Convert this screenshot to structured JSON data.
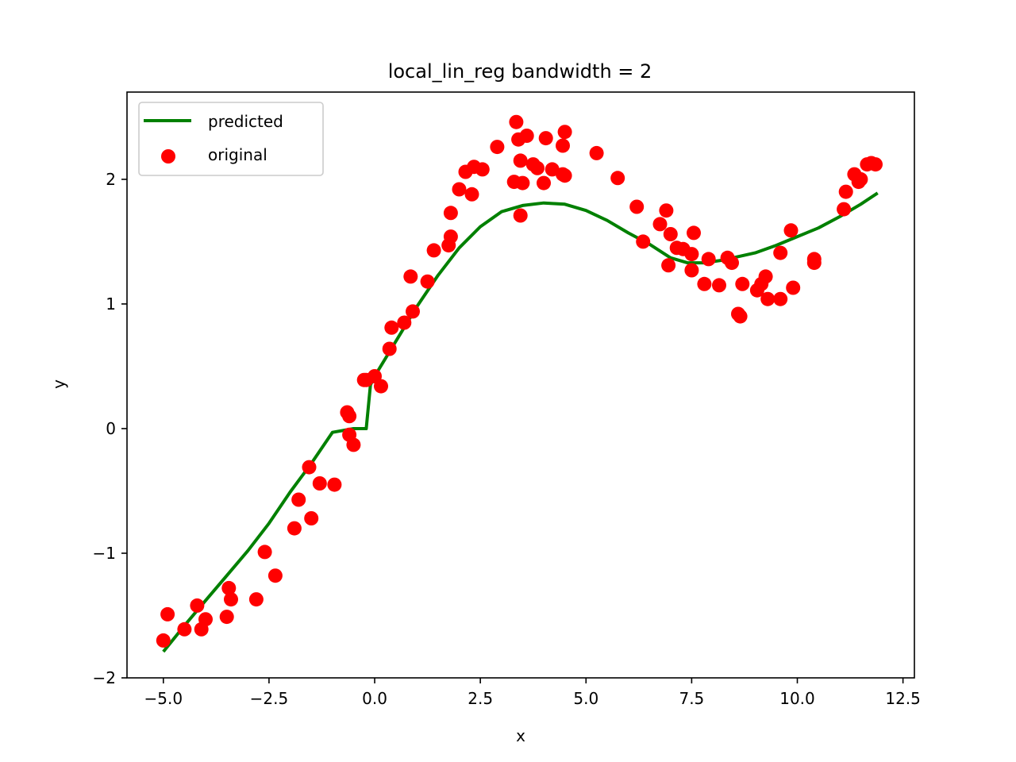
{
  "chart_data": {
    "type": "scatter",
    "title": "local_lin_reg bandwidth = 2",
    "xlabel": "x",
    "ylabel": "y",
    "xlim": [
      -5.86,
      12.77
    ],
    "ylim": [
      -2.0,
      2.7
    ],
    "xticks": [
      -5.0,
      -2.5,
      0.0,
      2.5,
      5.0,
      7.5,
      10.0,
      12.5
    ],
    "xtick_labels": [
      "−5.0",
      "−2.5",
      "0.0",
      "2.5",
      "5.0",
      "7.5",
      "10.0",
      "12.5"
    ],
    "yticks": [
      -2,
      -1,
      0,
      1,
      2
    ],
    "ytick_labels": [
      "−2",
      "−1",
      "0",
      "1",
      "2"
    ],
    "grid": false,
    "legend_position": "top-left",
    "colors": {
      "predicted": "#008000",
      "original": "#ff0000"
    },
    "series": [
      {
        "name": "predicted",
        "type": "line",
        "x": [
          -5.0,
          -4.5,
          -4.0,
          -3.5,
          -3.0,
          -2.5,
          -2.0,
          -1.5,
          -1.0,
          -0.5,
          -0.2,
          -0.1,
          0.0,
          0.5,
          1.0,
          1.5,
          2.0,
          2.5,
          3.0,
          3.5,
          4.0,
          4.5,
          5.0,
          5.5,
          6.0,
          6.5,
          7.0,
          7.4,
          7.8,
          8.2,
          8.6,
          9.0,
          9.5,
          10.0,
          10.5,
          11.0,
          11.5,
          11.9
        ],
        "y": [
          -1.79,
          -1.58,
          -1.38,
          -1.18,
          -0.98,
          -0.76,
          -0.51,
          -0.28,
          -0.03,
          0.0,
          0.0,
          0.35,
          0.42,
          0.7,
          0.98,
          1.23,
          1.45,
          1.62,
          1.74,
          1.79,
          1.81,
          1.8,
          1.75,
          1.67,
          1.57,
          1.48,
          1.37,
          1.33,
          1.33,
          1.35,
          1.38,
          1.41,
          1.47,
          1.54,
          1.61,
          1.7,
          1.8,
          1.89
        ]
      },
      {
        "name": "original",
        "type": "scatter",
        "x": [
          -5.0,
          -4.9,
          -4.5,
          -4.2,
          -4.1,
          -4.0,
          -3.5,
          -3.45,
          -3.4,
          -2.8,
          -2.6,
          -2.35,
          -1.9,
          -1.8,
          -1.55,
          -1.5,
          -1.3,
          -0.95,
          -0.65,
          -0.6,
          -0.6,
          -0.5,
          -0.25,
          -0.2,
          0.0,
          0.15,
          0.35,
          0.4,
          0.7,
          0.85,
          0.9,
          1.25,
          1.4,
          1.75,
          1.8,
          1.8,
          2.0,
          2.15,
          2.3,
          2.35,
          2.55,
          2.9,
          3.3,
          3.35,
          3.4,
          3.45,
          3.45,
          3.5,
          3.6,
          3.75,
          3.85,
          4.0,
          4.05,
          4.2,
          4.45,
          4.45,
          4.5,
          4.5,
          5.25,
          5.75,
          6.2,
          6.35,
          6.75,
          6.9,
          6.95,
          7.0,
          7.15,
          7.3,
          7.5,
          7.5,
          7.55,
          7.8,
          7.9,
          8.15,
          8.35,
          8.45,
          8.6,
          8.65,
          8.7,
          9.05,
          9.15,
          9.25,
          9.3,
          9.6,
          9.6,
          9.85,
          9.9,
          10.4,
          10.4,
          11.1,
          11.15,
          11.35,
          11.45,
          11.5,
          11.65,
          11.75,
          11.85
        ],
        "y": [
          -1.7,
          -1.49,
          -1.61,
          -1.42,
          -1.61,
          -1.53,
          -1.51,
          -1.28,
          -1.37,
          -1.37,
          -0.99,
          -1.18,
          -0.8,
          -0.57,
          -0.31,
          -0.72,
          -0.44,
          -0.45,
          0.13,
          0.1,
          -0.05,
          -0.13,
          0.39,
          0.39,
          0.42,
          0.34,
          0.64,
          0.81,
          0.85,
          1.22,
          0.94,
          1.18,
          1.43,
          1.47,
          1.54,
          1.73,
          1.92,
          2.06,
          1.88,
          2.1,
          2.08,
          2.26,
          1.98,
          2.46,
          2.32,
          2.15,
          1.71,
          1.97,
          2.35,
          2.12,
          2.09,
          1.97,
          2.33,
          2.08,
          2.27,
          2.04,
          2.03,
          2.38,
          2.21,
          2.01,
          1.78,
          1.5,
          1.64,
          1.75,
          1.31,
          1.56,
          1.45,
          1.44,
          1.27,
          1.4,
          1.57,
          1.16,
          1.36,
          1.15,
          1.37,
          1.33,
          0.92,
          0.9,
          1.16,
          1.11,
          1.16,
          1.22,
          1.04,
          1.04,
          1.41,
          1.59,
          1.13,
          1.33,
          1.36,
          1.76,
          1.9,
          2.04,
          1.98,
          2.0,
          2.12,
          2.13,
          2.12
        ]
      }
    ]
  }
}
